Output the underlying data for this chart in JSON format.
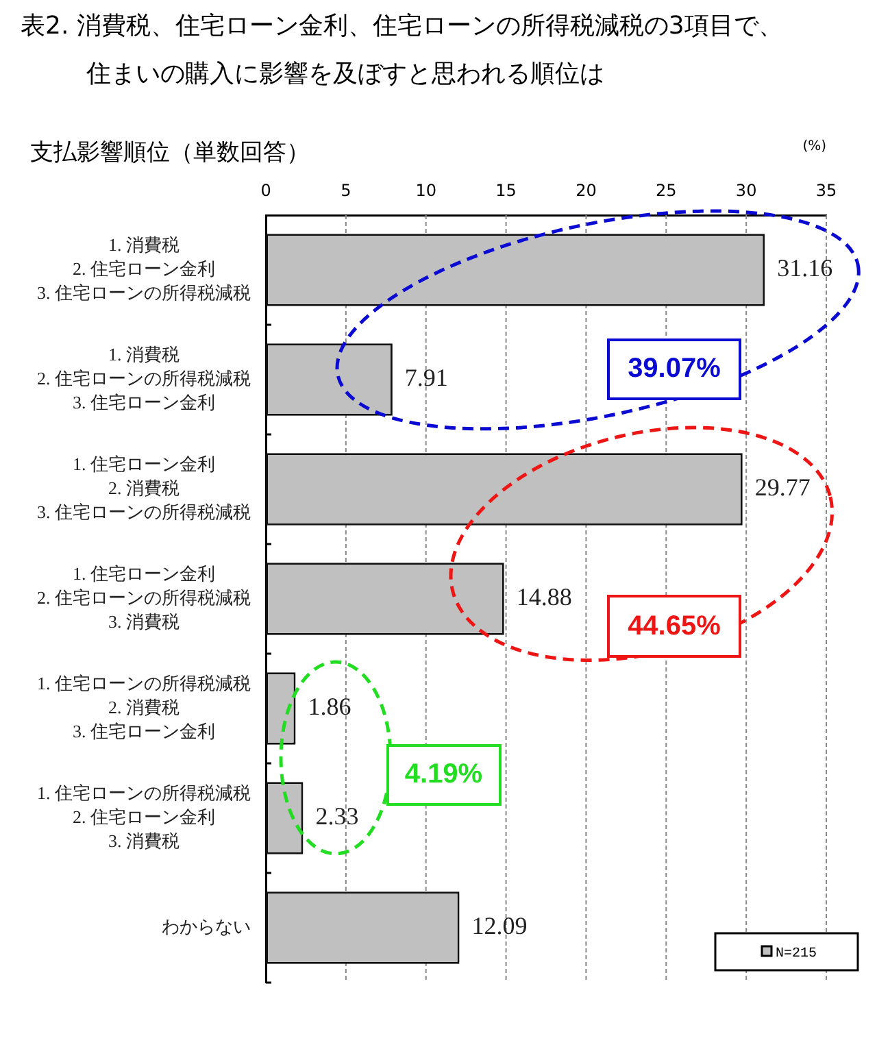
{
  "chart_data": {
    "type": "bar",
    "orientation": "horizontal",
    "title": "表2. 消費税、住宅ローン金利、住宅ローンの所得税減税の3項目で、住まいの購入に影響を及ぼすと思われる順位は",
    "subtitle": "支払影響順位（単数回答）",
    "xlabel": "(%)",
    "categories": [
      "1. 消費税\n2. 住宅ローン金利\n3. 住宅ローンの所得税減税",
      "1. 消費税\n2. 住宅ローンの所得税減税\n3. 住宅ローン金利",
      "1. 住宅ローン金利\n2. 消費税\n3. 住宅ローンの所得税減税",
      "1. 住宅ローン金利\n2. 住宅ローンの所得税減税\n3. 消費税",
      "1. 住宅ローンの所得税減税\n2. 消費税\n3. 住宅ローン金利",
      "1. 住宅ローンの所得税減税\n2. 住宅ローン金利\n3. 消費税",
      "わからない"
    ],
    "series": [
      {
        "name": "N=215",
        "color": "#c0c0c0",
        "values": [
          31.16,
          7.91,
          29.77,
          14.88,
          1.86,
          2.33,
          12.09
        ]
      }
    ],
    "xlim": [
      0,
      35
    ],
    "xticks": [
      0,
      5,
      10,
      15,
      20,
      25,
      30,
      35
    ],
    "grid": "x",
    "legend": "bottom right",
    "data_labels": true,
    "annotations": [
      "39.07%",
      "44.65%",
      "4.19%"
    ]
  }
}
